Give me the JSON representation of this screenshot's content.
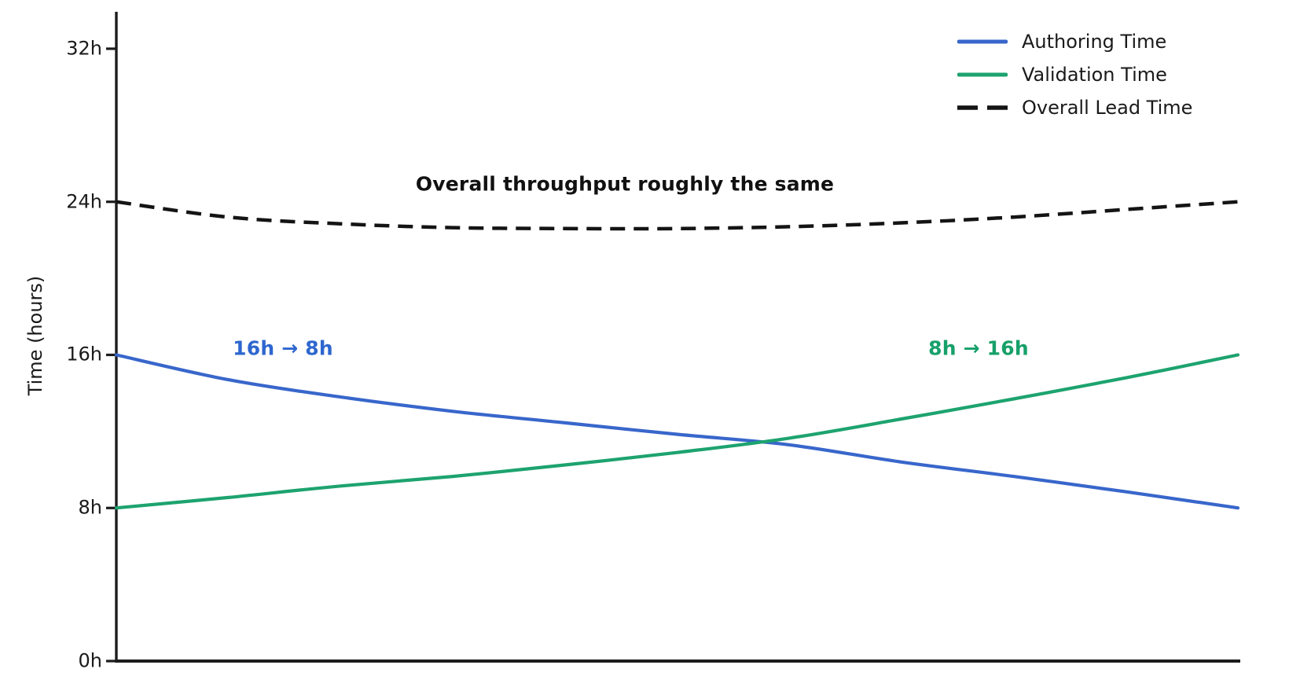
{
  "chart_data": {
    "type": "line",
    "title": "",
    "xlabel": "",
    "ylabel": "Time (hours)",
    "ylim": [
      0,
      34
    ],
    "x_range": [
      0,
      1
    ],
    "x_tick_labels": [],
    "grid": false,
    "legend_position": "upper right",
    "axis_color": "#1c1c1c",
    "text_color": "#1a1a1a",
    "x": [
      0,
      0.1,
      0.2,
      0.3,
      0.4,
      0.5,
      0.6,
      0.7,
      0.8,
      0.9,
      1
    ],
    "yticks": [
      {
        "label": "0h",
        "value": 0
      },
      {
        "label": "8h",
        "value": 8
      },
      {
        "label": "16h",
        "value": 16
      },
      {
        "label": "24h",
        "value": 24
      },
      {
        "label": "32h",
        "value": 32
      }
    ],
    "series": [
      {
        "name": "Authoring Time",
        "style": "solid",
        "color": "#3866cb",
        "values": [
          16,
          14.7,
          13.8,
          13.05,
          12.45,
          11.85,
          11.3,
          10.4,
          9.65,
          8.85,
          8
        ]
      },
      {
        "name": "Validation Time",
        "style": "solid",
        "color": "#1da36f",
        "values": [
          8,
          8.55,
          9.15,
          9.65,
          10.25,
          10.9,
          11.65,
          12.65,
          13.7,
          14.8,
          16
        ]
      },
      {
        "name": "Overall Lead Time",
        "style": "dashed",
        "color": "#141414",
        "values": [
          24,
          23.2,
          22.85,
          22.65,
          22.6,
          22.6,
          22.7,
          22.9,
          23.2,
          23.6,
          24
        ]
      }
    ],
    "annotations": [
      {
        "id": "lead",
        "text": "Overall throughput roughly the same",
        "color": "#111111"
      },
      {
        "id": "authoring",
        "text": "16h → 8h",
        "color": "#2e66cf"
      },
      {
        "id": "validation",
        "text": "8h → 16h",
        "color": "#17a06a"
      }
    ]
  }
}
